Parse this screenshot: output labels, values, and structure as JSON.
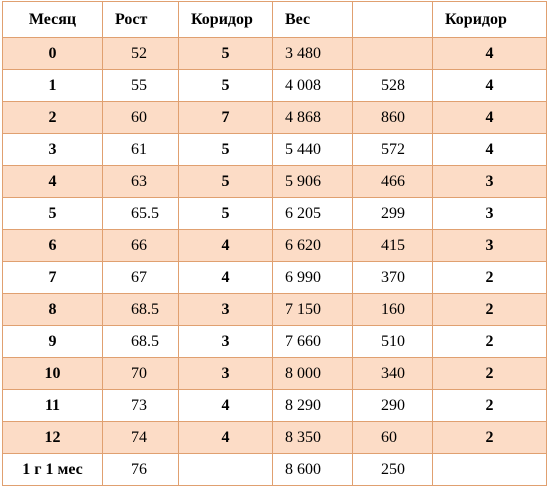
{
  "table": {
    "headers": [
      "Месяц",
      "Рост",
      "Коридор",
      "Вес",
      "",
      "Коридор"
    ],
    "rows": [
      {
        "month": "0",
        "rost": "52",
        "cor1": "5",
        "ves": "3 480",
        "diff": "",
        "cor2": "4"
      },
      {
        "month": "1",
        "rost": "55",
        "cor1": "5",
        "ves": "4 008",
        "diff": "528",
        "cor2": "4"
      },
      {
        "month": "2",
        "rost": "60",
        "cor1": "7",
        "ves": "4 868",
        "diff": "860",
        "cor2": "4"
      },
      {
        "month": "3",
        "rost": "61",
        "cor1": "5",
        "ves": "5 440",
        "diff": "572",
        "cor2": "4"
      },
      {
        "month": "4",
        "rost": "63",
        "cor1": "5",
        "ves": "5 906",
        "diff": "466",
        "cor2": "3"
      },
      {
        "month": "5",
        "rost": "65.5",
        "cor1": "5",
        "ves": "6 205",
        "diff": "299",
        "cor2": "3"
      },
      {
        "month": "6",
        "rost": "66",
        "cor1": "4",
        "ves": "6 620",
        "diff": "415",
        "cor2": "3"
      },
      {
        "month": "7",
        "rost": "67",
        "cor1": "4",
        "ves": "6 990",
        "diff": "370",
        "cor2": "2"
      },
      {
        "month": "8",
        "rost": "68.5",
        "cor1": "3",
        "ves": "7 150",
        "diff": "160",
        "cor2": "2"
      },
      {
        "month": "9",
        "rost": "68.5",
        "cor1": "3",
        "ves": "7 660",
        "diff": "510",
        "cor2": "2"
      },
      {
        "month": "10",
        "rost": "70",
        "cor1": "3",
        "ves": "8 000",
        "diff": "340",
        "cor2": "2"
      },
      {
        "month": "11",
        "rost": "73",
        "cor1": "4",
        "ves": "8 290",
        "diff": "290",
        "cor2": "2"
      },
      {
        "month": "12",
        "rost": "74",
        "cor1": "4",
        "ves": "8 350",
        "diff": "60",
        "cor2": "2"
      },
      {
        "month": "1 г 1 мес",
        "rost": "76",
        "cor1": "",
        "ves": "8 600",
        "diff": "250",
        "cor2": ""
      }
    ]
  },
  "colors": {
    "shaded_row": "#fcdcc6",
    "plain_row": "#ffffff",
    "border": "#e0a070"
  }
}
